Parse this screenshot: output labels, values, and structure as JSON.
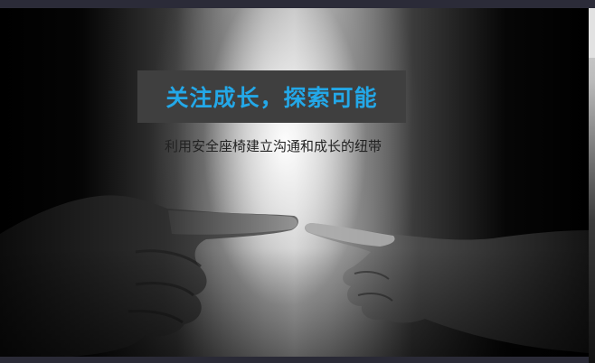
{
  "slide": {
    "title": "关注成长，探索可能",
    "subtitle": "利用安全座椅建立沟通和成长的纽带"
  },
  "colors": {
    "title_text": "#23a8e8",
    "title_box": "#3f3f3f",
    "subtitle_text": "#222222",
    "frame": "#232330"
  },
  "image": {
    "subject": "two-hands-touching-fingertips"
  }
}
